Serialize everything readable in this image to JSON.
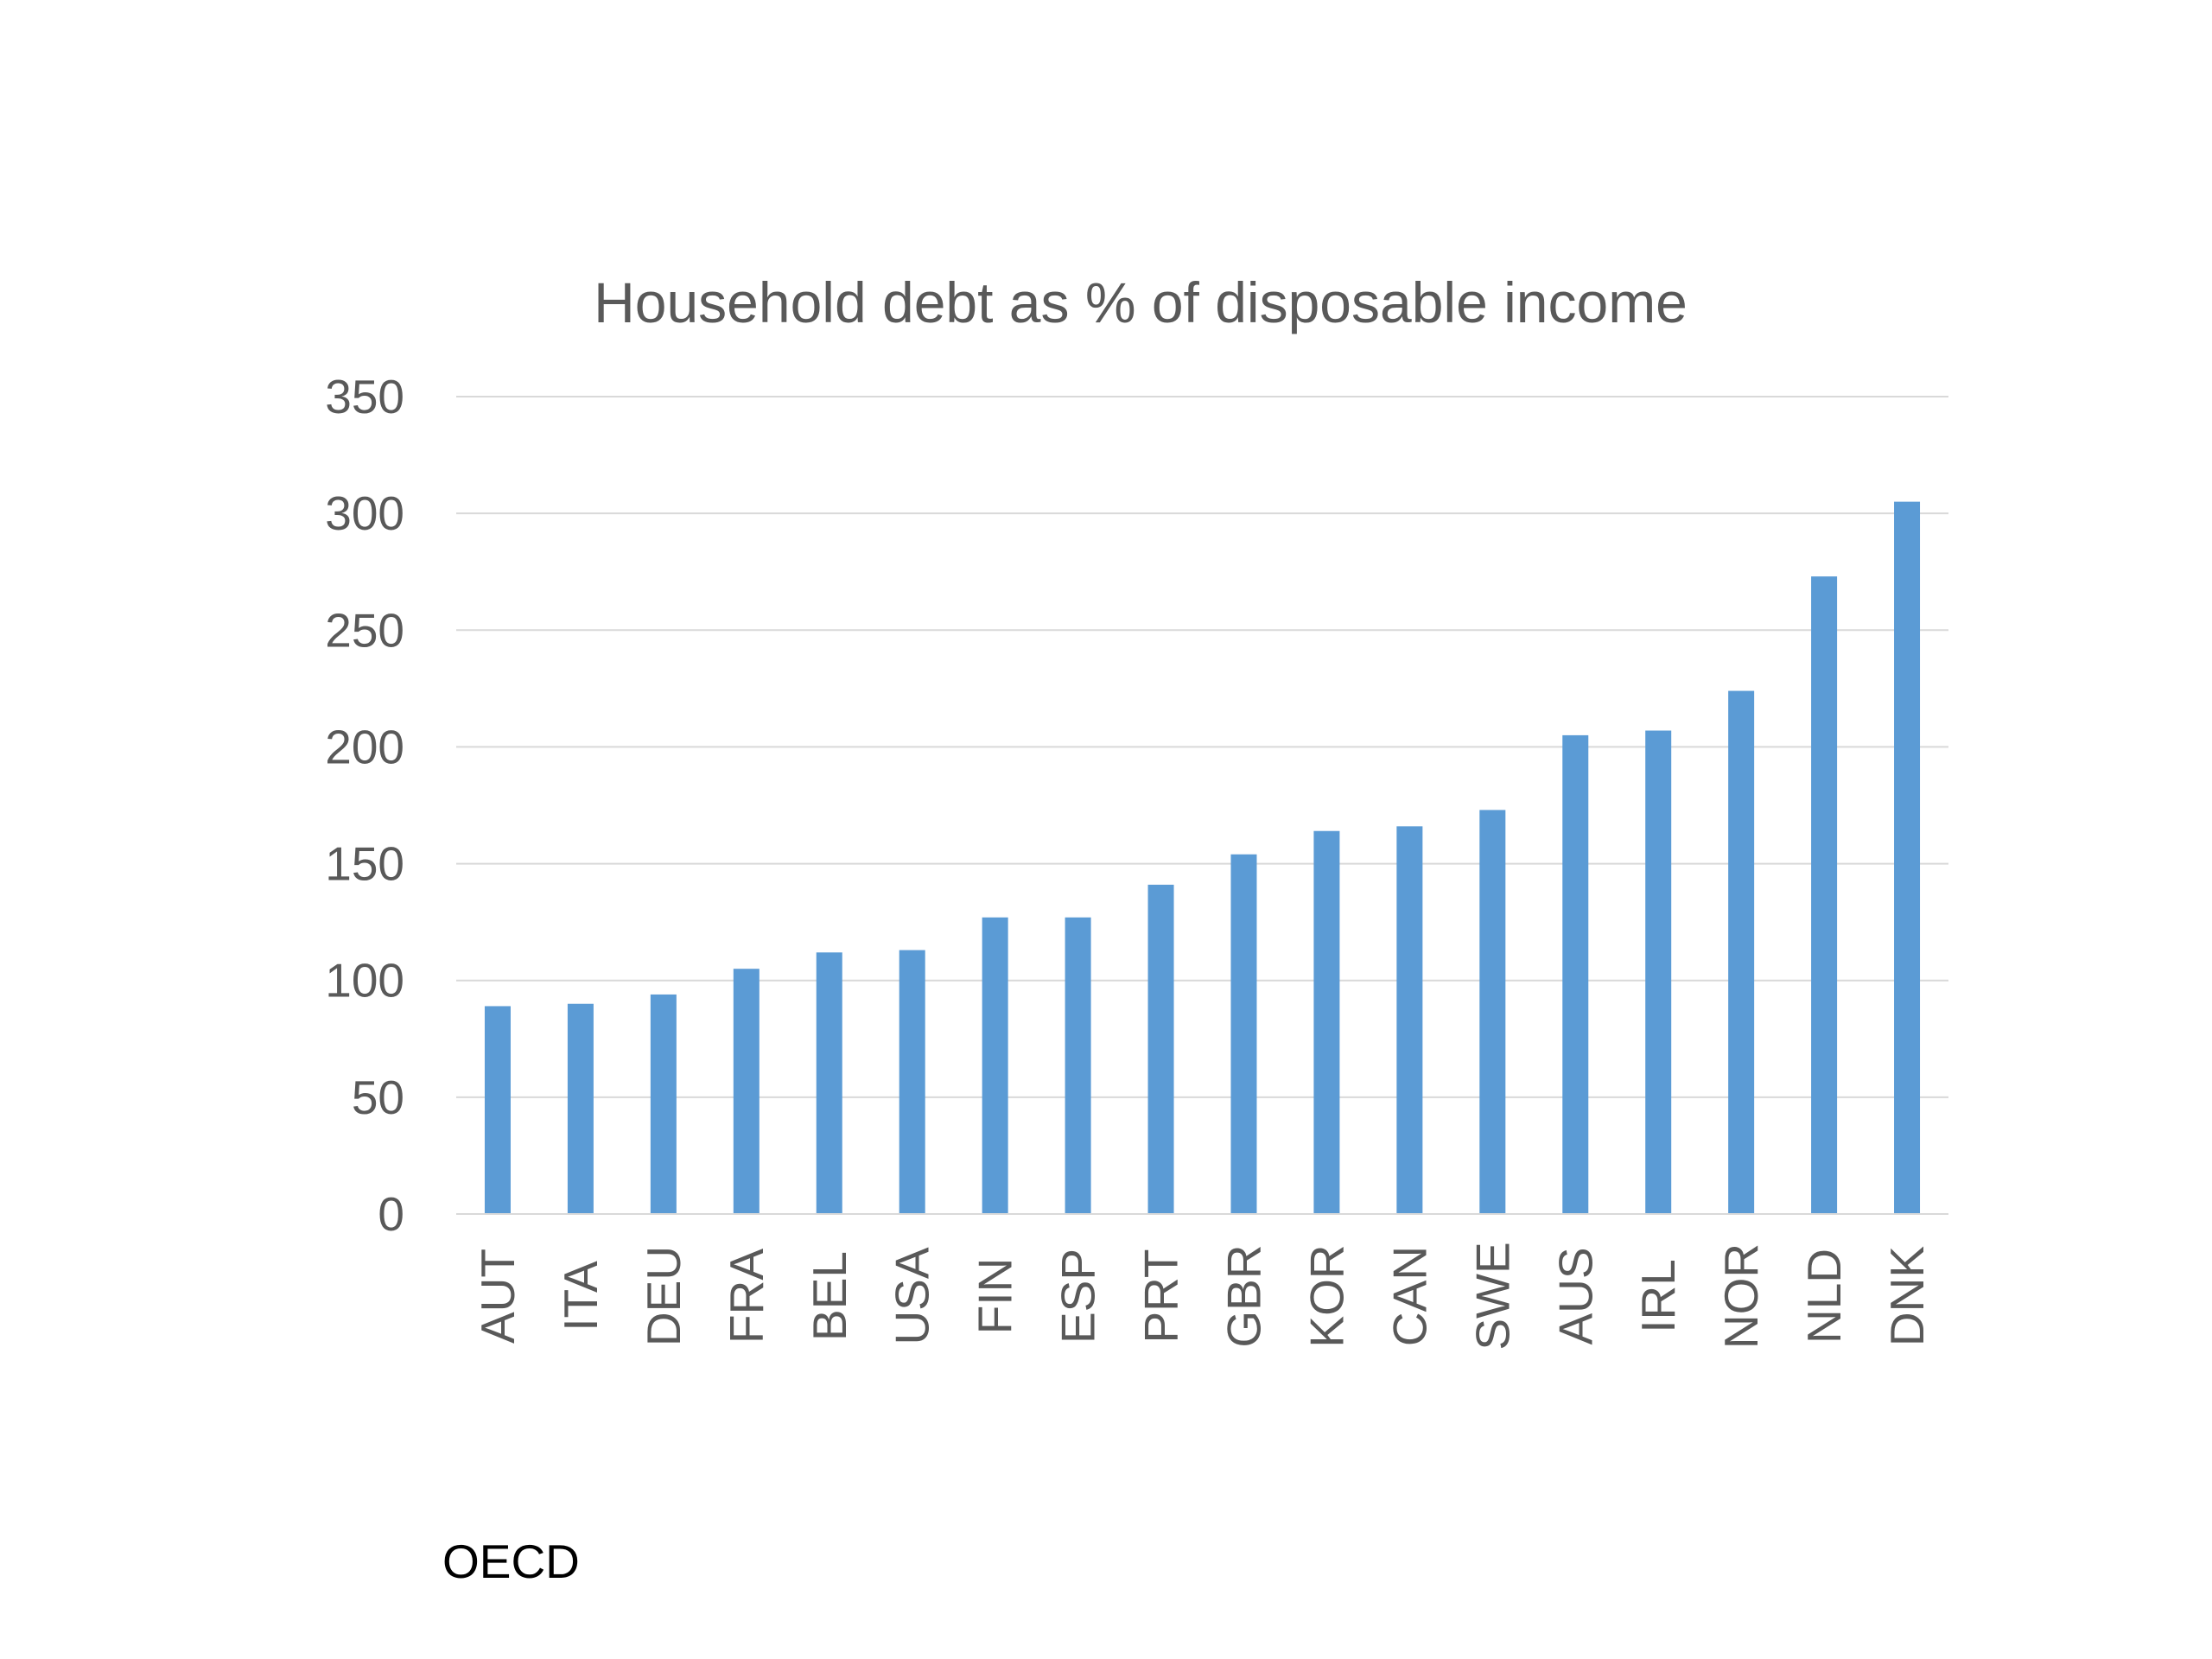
{
  "source_note": "OECD",
  "colors": {
    "bar": "#5b9bd5",
    "text": "#595959",
    "grid": "#d9d9d9"
  },
  "chart_data": {
    "type": "bar",
    "title": "Household debt as % of disposable income",
    "xlabel": "",
    "ylabel": "",
    "categories": [
      "AUT",
      "ITA",
      "DEU",
      "FRA",
      "BEL",
      "USA",
      "FIN",
      "ESP",
      "PRT",
      "GBR",
      "KOR",
      "CAN",
      "SWE",
      "AUS",
      "IRL",
      "NOR",
      "NLD",
      "DNK"
    ],
    "values": [
      89,
      90,
      94,
      105,
      112,
      113,
      127,
      127,
      141,
      154,
      164,
      166,
      173,
      205,
      207,
      224,
      273,
      305
    ],
    "ylim": [
      0,
      350
    ],
    "yticks": [
      0,
      50,
      100,
      150,
      200,
      250,
      300,
      350
    ],
    "grid": true,
    "legend": "none"
  }
}
